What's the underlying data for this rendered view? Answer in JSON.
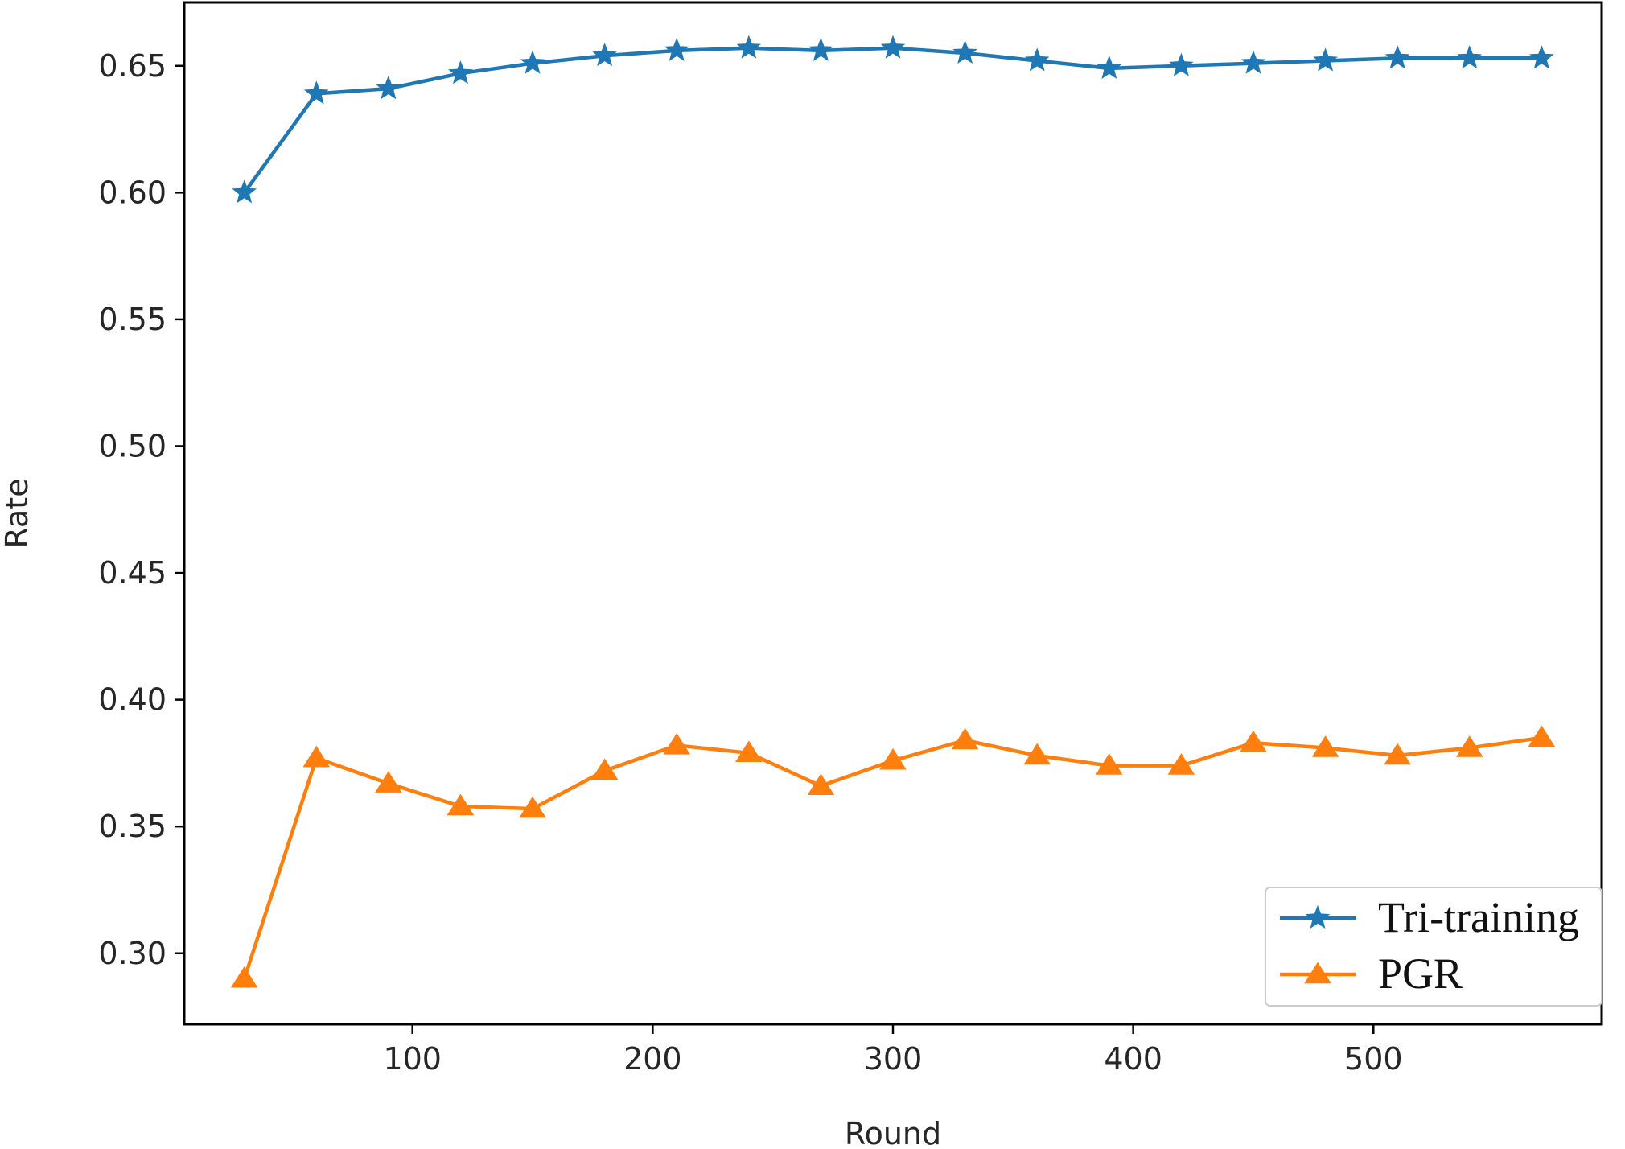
{
  "chart_data": {
    "type": "line",
    "title": "",
    "xlabel": "Round",
    "ylabel": "Rate",
    "xlim": [
      5,
      595
    ],
    "ylim": [
      0.272,
      0.675
    ],
    "x_ticks": [
      100,
      200,
      300,
      400,
      500
    ],
    "x_tick_labels": [
      "100",
      "200",
      "300",
      "400",
      "500"
    ],
    "y_ticks": [
      0.3,
      0.35,
      0.4,
      0.45,
      0.5,
      0.55,
      0.6,
      0.65
    ],
    "y_tick_labels": [
      "0.30",
      "0.35",
      "0.40",
      "0.45",
      "0.50",
      "0.55",
      "0.60",
      "0.65"
    ],
    "grid": false,
    "legend_position": "lower-right",
    "x": [
      30,
      60,
      90,
      120,
      150,
      180,
      210,
      240,
      270,
      300,
      330,
      360,
      390,
      420,
      450,
      480,
      510,
      540,
      570
    ],
    "series": [
      {
        "name": "Tri-training",
        "color": "#1f77b4",
        "marker": "star",
        "values": [
          0.6,
          0.639,
          0.641,
          0.647,
          0.651,
          0.654,
          0.656,
          0.657,
          0.656,
          0.657,
          0.655,
          0.652,
          0.649,
          0.65,
          0.651,
          0.652,
          0.653,
          0.653,
          0.653
        ]
      },
      {
        "name": "PGR",
        "color": "#ff7f0e",
        "marker": "triangle-up",
        "values": [
          0.29,
          0.377,
          0.367,
          0.358,
          0.357,
          0.372,
          0.382,
          0.379,
          0.366,
          0.376,
          0.384,
          0.378,
          0.374,
          0.374,
          0.383,
          0.381,
          0.378,
          0.381,
          0.385
        ]
      }
    ]
  }
}
